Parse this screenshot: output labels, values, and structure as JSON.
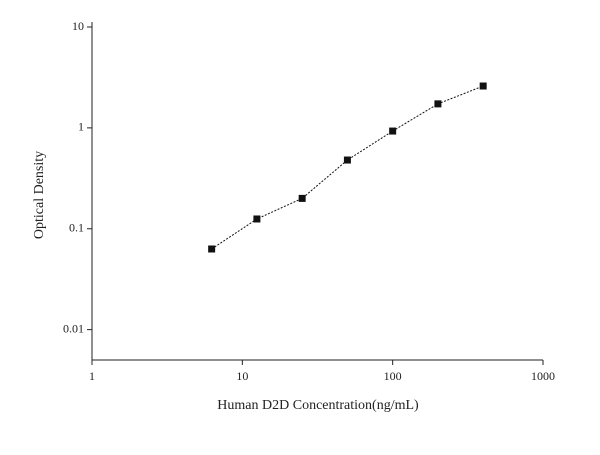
{
  "chart_data": {
    "type": "scatter",
    "x_label": "Human D2D Concentration(ng/mL)",
    "y_label": "Optical Density",
    "x": [
      6.25,
      12.5,
      25,
      50,
      100,
      200,
      400
    ],
    "values": [
      0.063,
      0.125,
      0.2,
      0.48,
      0.93,
      1.73,
      2.6
    ],
    "color": "#111111",
    "x_log": true,
    "y_log": true,
    "xlim": [
      1,
      1000
    ],
    "xticks": [
      1,
      10,
      100,
      1000
    ],
    "ylim": [
      0.005,
      10
    ],
    "yticks": [
      0.01,
      0.1,
      1,
      10
    ],
    "line": true
  }
}
